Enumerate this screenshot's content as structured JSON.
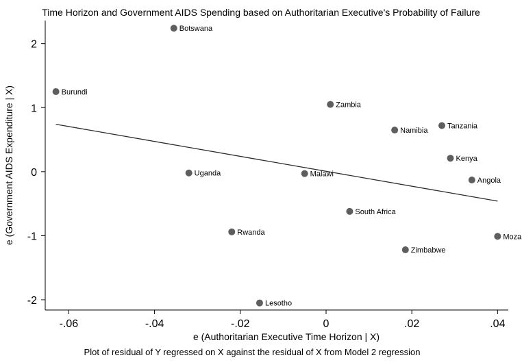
{
  "chart_data": {
    "type": "scatter",
    "title": "Time Horizon and Government AIDS Spending based on Authoritarian Executive's Probability of Failure",
    "xlabel": "e (Authoritarian Executive Time Horizon | X)",
    "ylabel": "e (Government AIDS Expenditure | X)",
    "note": "Plot of residual of Y regressed on X against the residual of X from Model 2 regression",
    "xlim": [
      -0.0655,
      0.0425
    ],
    "ylim": [
      -2.16,
      2.36
    ],
    "xticks": [
      -0.06,
      -0.04,
      -0.02,
      0,
      0.02,
      0.04
    ],
    "xtick_labels": [
      "-.06",
      "-.04",
      "-.02",
      "0",
      ".02",
      ".04"
    ],
    "yticks": [
      -2,
      -1,
      0,
      1,
      2
    ],
    "ytick_labels": [
      "-2",
      "-1",
      "0",
      "1",
      "2"
    ],
    "points": [
      {
        "label": "Botswana",
        "x": -0.0355,
        "y": 2.24
      },
      {
        "label": "Burundi",
        "x": -0.063,
        "y": 1.25
      },
      {
        "label": "Zambia",
        "x": 0.001,
        "y": 1.05
      },
      {
        "label": "Tanzania",
        "x": 0.027,
        "y": 0.72
      },
      {
        "label": "Namibia",
        "x": 0.016,
        "y": 0.65
      },
      {
        "label": "Kenya",
        "x": 0.029,
        "y": 0.21
      },
      {
        "label": "Uganda",
        "x": -0.032,
        "y": -0.02
      },
      {
        "label": "Malawi",
        "x": -0.005,
        "y": -0.03
      },
      {
        "label": "Angola",
        "x": 0.034,
        "y": -0.13
      },
      {
        "label": "South Africa",
        "x": 0.0055,
        "y": -0.62
      },
      {
        "label": "Rwanda",
        "x": -0.022,
        "y": -0.94
      },
      {
        "label": "Moza",
        "x": 0.04,
        "y": -1.01
      },
      {
        "label": "Zimbabwe",
        "x": 0.0185,
        "y": -1.22
      },
      {
        "label": "Lesotho",
        "x": -0.0155,
        "y": -2.05
      }
    ],
    "fit_line": {
      "x": [
        -0.063,
        0.04
      ],
      "y": [
        0.74,
        -0.46
      ]
    },
    "colors": {
      "point": "#5e5e5e",
      "line": "#2a2a2a",
      "axis": "#000000"
    },
    "grid": false,
    "legend": "none"
  }
}
